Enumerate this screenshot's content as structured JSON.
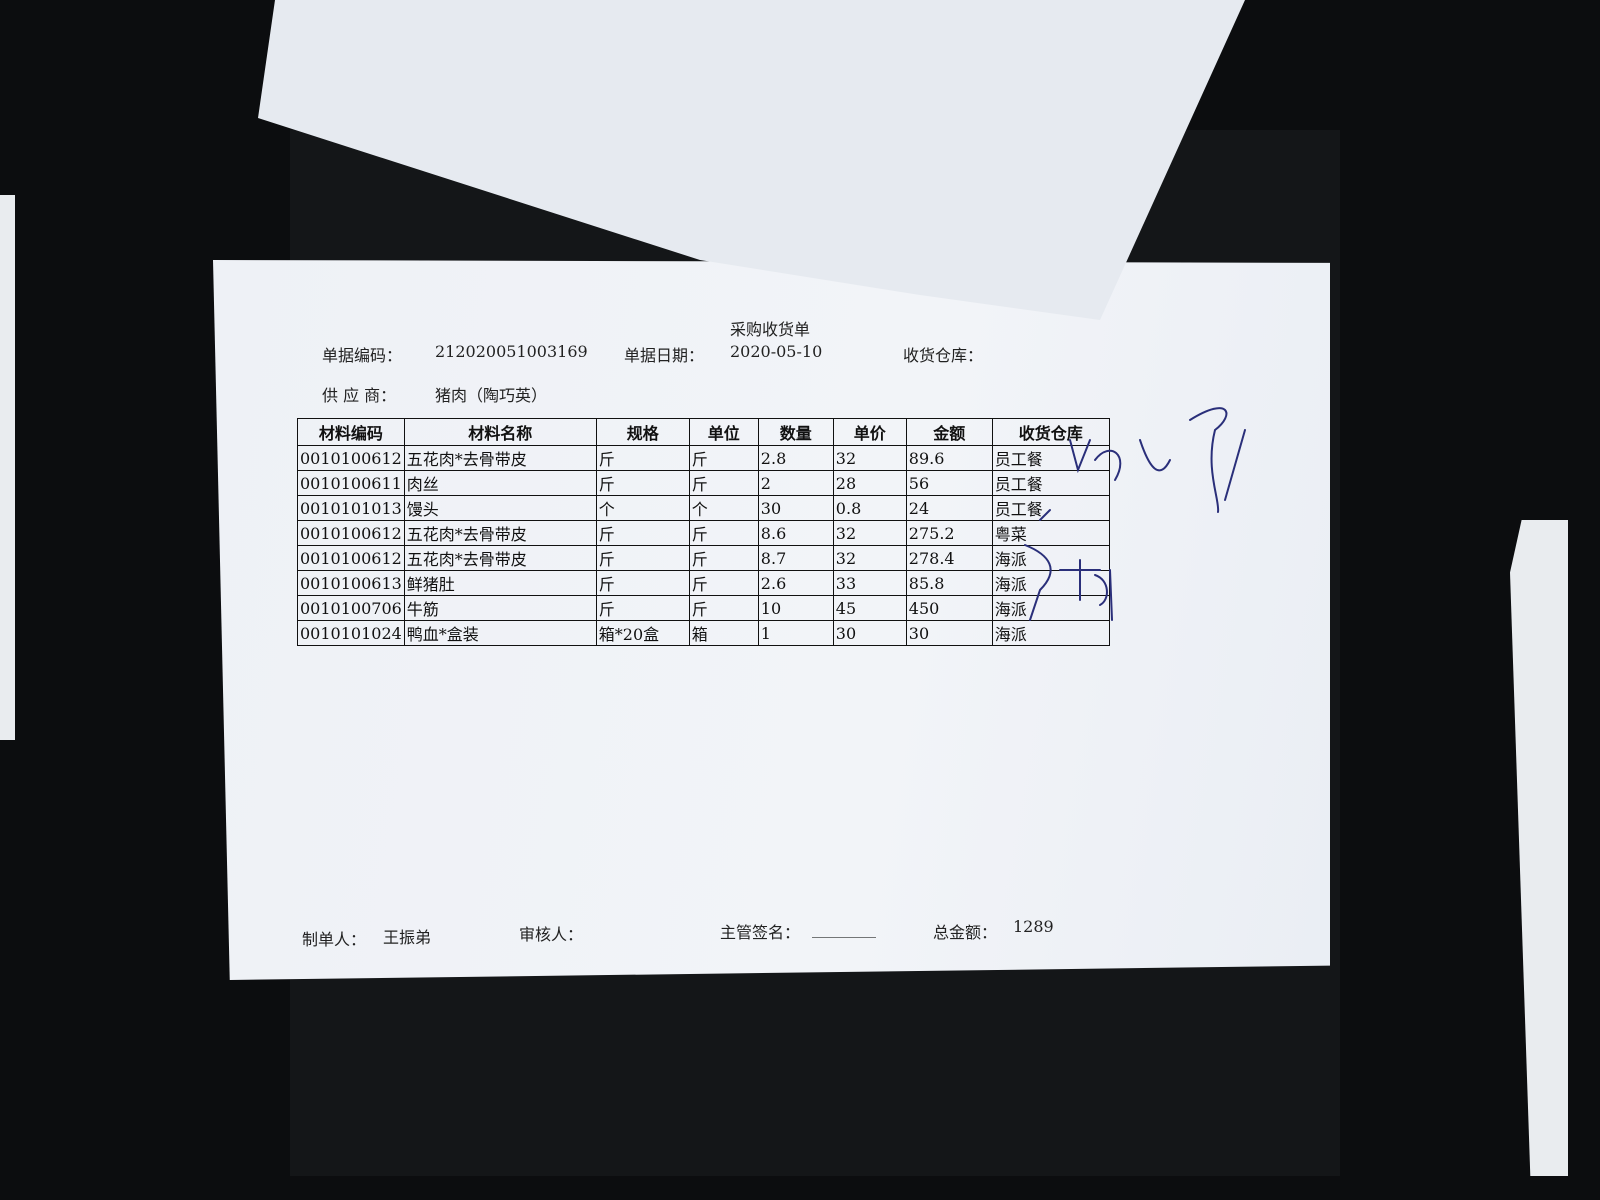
{
  "document": {
    "title": "采购收货单",
    "header": {
      "bill_no_label": "单据编码：",
      "bill_no": "212020051003169",
      "bill_date_label": "单据日期：",
      "bill_date": "2020-05-10",
      "warehouse_label": "收货仓库：",
      "supplier_label": "供 应 商：",
      "supplier": "猪肉（陶巧英）"
    },
    "table": {
      "columns": [
        "材料编码",
        "材料名称",
        "规格",
        "单位",
        "数量",
        "单价",
        "金额",
        "收货仓库"
      ],
      "rows": [
        [
          "0010100612",
          "五花肉*去骨带皮",
          "斤",
          "斤",
          "2.8",
          "32",
          "89.6",
          "员工餐"
        ],
        [
          "0010100611",
          "肉丝",
          "斤",
          "斤",
          "2",
          "28",
          "56",
          "员工餐"
        ],
        [
          "0010101013",
          "馒头",
          "个",
          "个",
          "30",
          "0.8",
          "24",
          "员工餐"
        ],
        [
          "0010100612",
          "五花肉*去骨带皮",
          "斤",
          "斤",
          "8.6",
          "32",
          "275.2",
          "粤菜"
        ],
        [
          "0010100612",
          "五花肉*去骨带皮",
          "斤",
          "斤",
          "8.7",
          "32",
          "278.4",
          "海派"
        ],
        [
          "0010100613",
          "鲜猪肚",
          "斤",
          "斤",
          "2.6",
          "33",
          "85.8",
          "海派"
        ],
        [
          "0010100706",
          "牛筋",
          "斤",
          "斤",
          "10",
          "45",
          "450",
          "海派"
        ],
        [
          "0010101024",
          "鸭血*盒装",
          "箱*20盒",
          "箱",
          "1",
          "30",
          "30",
          "海派"
        ]
      ]
    },
    "footer": {
      "maker_label": "制单人：",
      "maker": "王振弟",
      "reviewer_label": "审核人：",
      "supervisor_label": "主管签名：",
      "supervisor_blank": "________",
      "total_label": "总金额：",
      "total": "1289"
    }
  }
}
